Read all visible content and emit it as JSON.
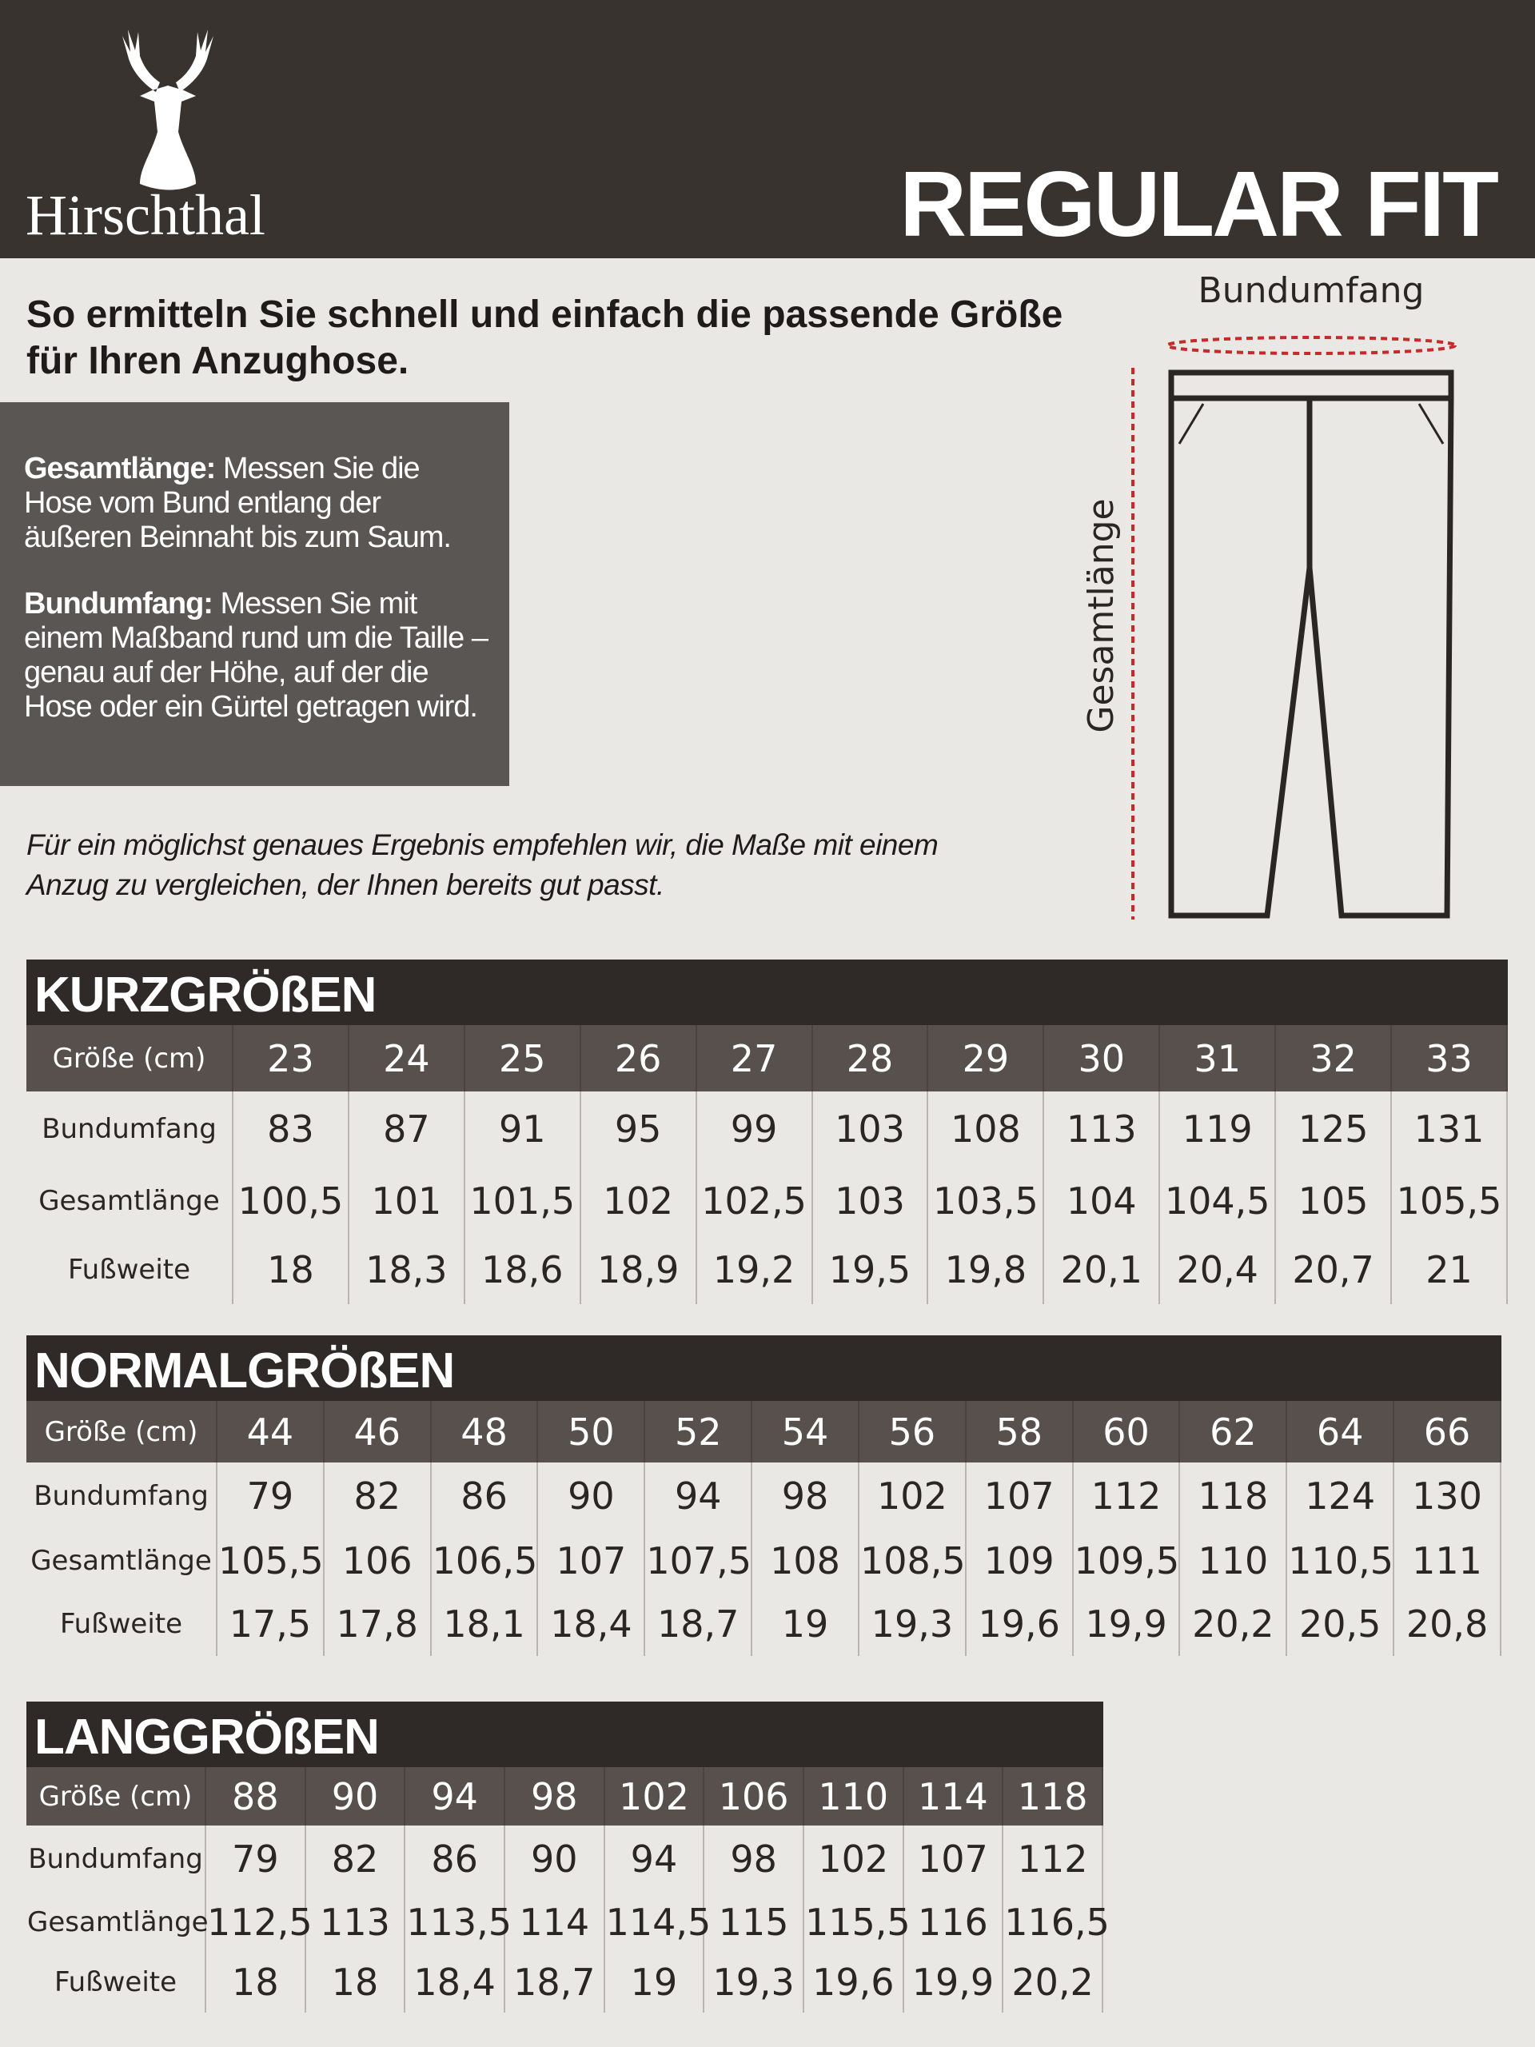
{
  "header": {
    "brand": "Hirschthal",
    "title": "REGULAR FIT"
  },
  "intro": {
    "heading": "So ermitteln Sie schnell und einfach die passende Größe für Ihren Anzughose.",
    "instructions": [
      {
        "term": "Gesamtlänge:",
        "text": "Messen Sie die Hose vom Bund entlang der äußeren Beinnaht bis zum Saum."
      },
      {
        "term": "Bundumfang:",
        "text": "Messen Sie mit einem Maßband rund um die Taille – genau auf der Höhe, auf der die Hose oder ein Gürtel getragen wird."
      }
    ],
    "note": "Für ein möglichst genaues Ergebnis empfehlen wir, die Maße mit einem Anzug zu vergleichen, der Ihnen bereits gut passt."
  },
  "diagram": {
    "waist_label": "Bundumfang",
    "length_label": "Gesamtlänge"
  },
  "tables": [
    {
      "title": "KURZGRÖßEN",
      "header": [
        "Größe (cm)",
        "23",
        "24",
        "25",
        "26",
        "27",
        "28",
        "29",
        "30",
        "31",
        "32",
        "33"
      ],
      "rows": [
        [
          "Bundumfang",
          "83",
          "87",
          "91",
          "95",
          "99",
          "103",
          "108",
          "113",
          "119",
          "125",
          "131"
        ],
        [
          "Gesamtlänge",
          "100,5",
          "101",
          "101,5",
          "102",
          "102,5",
          "103",
          "103,5",
          "104",
          "104,5",
          "105",
          "105,5"
        ],
        [
          "Fußweite",
          "18",
          "18,3",
          "18,6",
          "18,9",
          "19,2",
          "19,5",
          "19,8",
          "20,1",
          "20,4",
          "20,7",
          "21"
        ]
      ]
    },
    {
      "title": "NORMALGRÖßEN",
      "header": [
        "Größe (cm)",
        "44",
        "46",
        "48",
        "50",
        "52",
        "54",
        "56",
        "58",
        "60",
        "62",
        "64",
        "66"
      ],
      "rows": [
        [
          "Bundumfang",
          "79",
          "82",
          "86",
          "90",
          "94",
          "98",
          "102",
          "107",
          "112",
          "118",
          "124",
          "130"
        ],
        [
          "Gesamtlänge",
          "105,5",
          "106",
          "106,5",
          "107",
          "107,5",
          "108",
          "108,5",
          "109",
          "109,5",
          "110",
          "110,5",
          "111"
        ],
        [
          "Fußweite",
          "17,5",
          "17,8",
          "18,1",
          "18,4",
          "18,7",
          "19",
          "19,3",
          "19,6",
          "19,9",
          "20,2",
          "20,5",
          "20,8"
        ]
      ]
    },
    {
      "title": "LANGGRÖßEN",
      "header": [
        "Größe (cm)",
        "88",
        "90",
        "94",
        "98",
        "102",
        "106",
        "110",
        "114",
        "118"
      ],
      "rows": [
        [
          "Bundumfang",
          "79",
          "82",
          "86",
          "90",
          "94",
          "98",
          "102",
          "107",
          "112"
        ],
        [
          "Gesamtlänge",
          "112,5",
          "113",
          "113,5",
          "114",
          "114,5",
          "115",
          "115,5",
          "116",
          "116,5"
        ],
        [
          "Fußweite",
          "18",
          "18",
          "18,4",
          "18,7",
          "19",
          "19,3",
          "19,6",
          "19,9",
          "20,2"
        ]
      ]
    }
  ]
}
